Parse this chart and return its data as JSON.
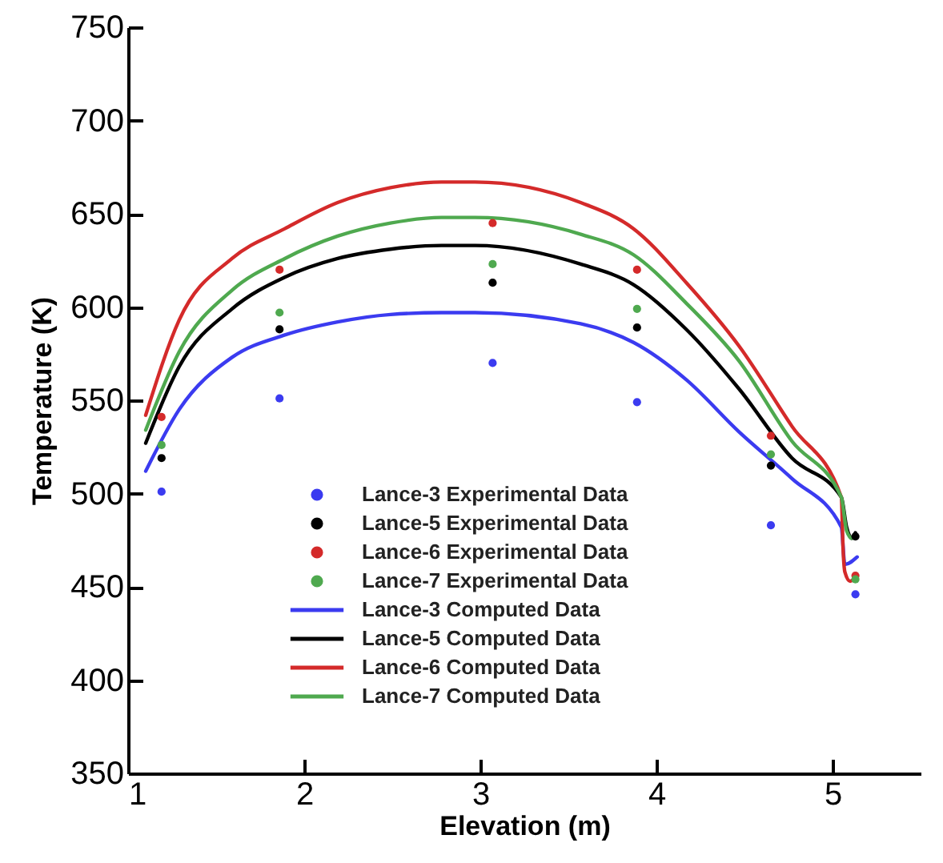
{
  "chart_data": {
    "type": "line",
    "xlabel": "Elevation (m)",
    "ylabel": "Temperature (K)",
    "xlim": [
      1,
      5.5
    ],
    "ylim": [
      350,
      750
    ],
    "xticks": [
      1,
      2,
      3,
      4,
      5
    ],
    "yticks": [
      350,
      400,
      450,
      500,
      550,
      600,
      650,
      700,
      750
    ],
    "grid": false,
    "legend": "bottom left",
    "series": [
      {
        "name": "Lance-3 Experimental Data",
        "type": "scatter",
        "marker": "circle",
        "color": "#3b3bf0",
        "x": [
          1.19,
          1.86,
          3.07,
          3.89,
          4.65,
          5.13
        ],
        "values": [
          501,
          551,
          570,
          549,
          483,
          446
        ]
      },
      {
        "name": "Lance-5 Experimental Data",
        "type": "scatter",
        "marker": "circle",
        "color": "#000000",
        "x": [
          1.19,
          1.86,
          3.07,
          3.89,
          4.65,
          5.13
        ],
        "values": [
          519,
          588,
          613,
          589,
          515,
          477
        ]
      },
      {
        "name": "Lance-6 Experimental Data",
        "type": "scatter",
        "marker": "circle",
        "color": "#d42a2a",
        "x": [
          1.19,
          1.86,
          3.07,
          3.89,
          4.65,
          5.13
        ],
        "values": [
          541,
          620,
          645,
          620,
          531,
          456
        ]
      },
      {
        "name": "Lance-7 Experimental Data",
        "type": "scatter",
        "marker": "circle",
        "color": "#4fa94f",
        "x": [
          1.19,
          1.86,
          3.07,
          3.89,
          4.65,
          5.13
        ],
        "values": [
          526,
          597,
          623,
          599,
          521,
          454
        ]
      },
      {
        "name": "Lance-3 Computed Data",
        "marker": "none",
        "color": "#3b3bf0",
        "x": [
          1.1,
          1.29,
          1.59,
          1.89,
          2.19,
          2.49,
          2.78,
          2.97,
          3.57,
          3.87,
          4.17,
          4.47,
          4.77,
          5.05,
          5.07,
          5.14
        ],
        "values": [
          512,
          545,
          573,
          585,
          592,
          596,
          597,
          597,
          591,
          581,
          561,
          533,
          508,
          482,
          462,
          466
        ]
      },
      {
        "name": "Lance-5 Computed Data",
        "marker": "none",
        "color": "#000000",
        "x": [
          1.1,
          1.29,
          1.59,
          1.89,
          2.19,
          2.49,
          2.78,
          2.97,
          3.57,
          3.87,
          4.17,
          4.47,
          4.77,
          5.05,
          5.08,
          5.11,
          5.13
        ],
        "values": [
          527,
          568,
          599,
          616,
          626,
          631,
          633,
          633,
          623,
          612,
          588,
          556,
          519,
          498,
          482,
          476,
          479
        ]
      },
      {
        "name": "Lance-6 Computed Data",
        "marker": "none",
        "color": "#d42a2a",
        "x": [
          1.1,
          1.29,
          1.59,
          1.89,
          2.19,
          2.49,
          2.78,
          2.97,
          3.57,
          3.87,
          4.17,
          4.47,
          4.77,
          5.05,
          5.06,
          5.07,
          5.1,
          5.13
        ],
        "values": [
          542,
          593,
          626,
          642,
          656,
          664,
          667,
          667,
          656,
          642,
          613,
          579,
          536,
          498,
          470,
          458,
          453,
          455
        ]
      },
      {
        "name": "Lance-7 Computed Data",
        "marker": "none",
        "color": "#4fa94f",
        "x": [
          1.1,
          1.29,
          1.59,
          1.89,
          2.19,
          2.49,
          2.78,
          2.97,
          3.57,
          3.87,
          4.17,
          4.47,
          4.77,
          5.05,
          5.08,
          5.11,
          5.13
        ],
        "values": [
          534,
          576,
          609,
          626,
          638,
          645,
          648,
          648,
          639,
          628,
          602,
          571,
          528,
          498,
          480,
          476,
          477
        ]
      }
    ]
  }
}
